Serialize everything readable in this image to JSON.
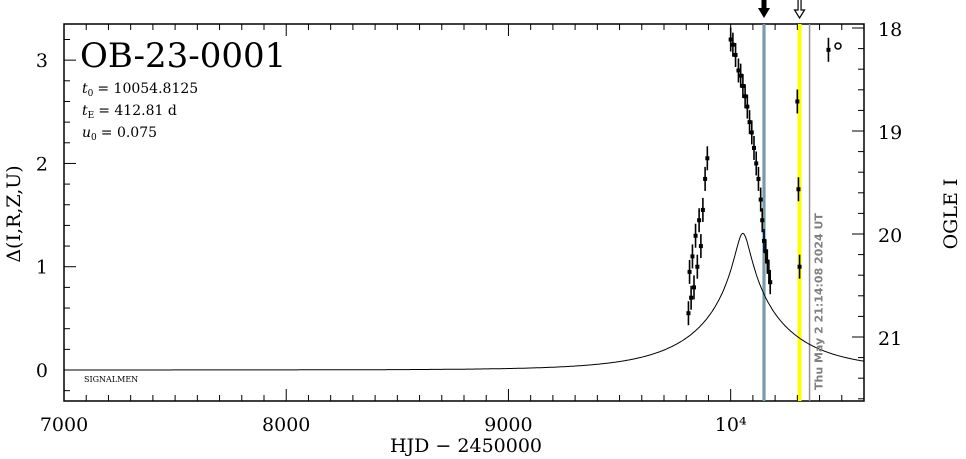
{
  "chart_data": {
    "type": "scatter",
    "title": "OB-23-0001",
    "params": {
      "t0": "= 10054.8125",
      "tE": "= 412.81  d",
      "u0": "= 0.075"
    },
    "t0_sym": "t",
    "t0_sub": "0",
    "tE_sym": "t",
    "tE_sub": "E",
    "u0_sym": "u",
    "u0_sub": "0",
    "xlabel": "HJD  −  2450000",
    "ylabel_left": "Δ(I,R,Z,U)",
    "ylabel_right": "OGLE I",
    "xlim": [
      7000,
      10600
    ],
    "ylim_left": [
      -0.3,
      3.35
    ],
    "ylim_right_note": "magnitude, inverted",
    "x_ticks": [
      "7000",
      "8000",
      "9000",
      "10⁴"
    ],
    "x_tick_values": [
      7000,
      8000,
      9000,
      10000
    ],
    "y_ticks_left": [
      "0",
      "1",
      "2",
      "3"
    ],
    "y_tick_values_left": [
      0,
      1,
      2,
      3
    ],
    "y_ticks_right": [
      "18",
      "19",
      "20",
      "21"
    ],
    "y_tick_values_right": [
      18,
      19,
      20,
      21
    ],
    "signalmen_label": "SIGNALMEN",
    "timestamp": "Thu May  2 21:14:08 2024 UT",
    "blue_line_x": 10150,
    "yellow_line_x": 10310,
    "gray_line_x": 10355,
    "model": {
      "t0": 10054.8125,
      "tE": 412.81,
      "u0": 0.075
    },
    "data_points": [
      {
        "x": 9810,
        "y": 0.55
      },
      {
        "x": 9815,
        "y": 0.95
      },
      {
        "x": 9822,
        "y": 0.7
      },
      {
        "x": 9828,
        "y": 1.1
      },
      {
        "x": 9835,
        "y": 0.8
      },
      {
        "x": 9842,
        "y": 1.3
      },
      {
        "x": 9850,
        "y": 1.0
      },
      {
        "x": 9858,
        "y": 1.45
      },
      {
        "x": 9866,
        "y": 1.2
      },
      {
        "x": 9875,
        "y": 1.55
      },
      {
        "x": 9885,
        "y": 1.85
      },
      {
        "x": 9895,
        "y": 2.05
      },
      {
        "x": 10000,
        "y": 3.2
      },
      {
        "x": 10010,
        "y": 3.15
      },
      {
        "x": 10022,
        "y": 3.05
      },
      {
        "x": 10035,
        "y": 2.9
      },
      {
        "x": 10045,
        "y": 2.85
      },
      {
        "x": 10055,
        "y": 2.75
      },
      {
        "x": 10065,
        "y": 2.65
      },
      {
        "x": 10075,
        "y": 2.55
      },
      {
        "x": 10085,
        "y": 2.4
      },
      {
        "x": 10095,
        "y": 2.3
      },
      {
        "x": 10105,
        "y": 2.15
      },
      {
        "x": 10115,
        "y": 2.0
      },
      {
        "x": 10125,
        "y": 1.85
      },
      {
        "x": 10135,
        "y": 1.65
      },
      {
        "x": 10142,
        "y": 1.45
      },
      {
        "x": 10150,
        "y": 1.25
      },
      {
        "x": 10158,
        "y": 1.15
      },
      {
        "x": 10165,
        "y": 1.05
      },
      {
        "x": 10172,
        "y": 0.95
      },
      {
        "x": 10178,
        "y": 0.85
      },
      {
        "x": 10300,
        "y": 2.6
      },
      {
        "x": 10305,
        "y": 1.75
      },
      {
        "x": 10310,
        "y": 1.0
      },
      {
        "x": 10440,
        "y": 3.1
      }
    ]
  }
}
